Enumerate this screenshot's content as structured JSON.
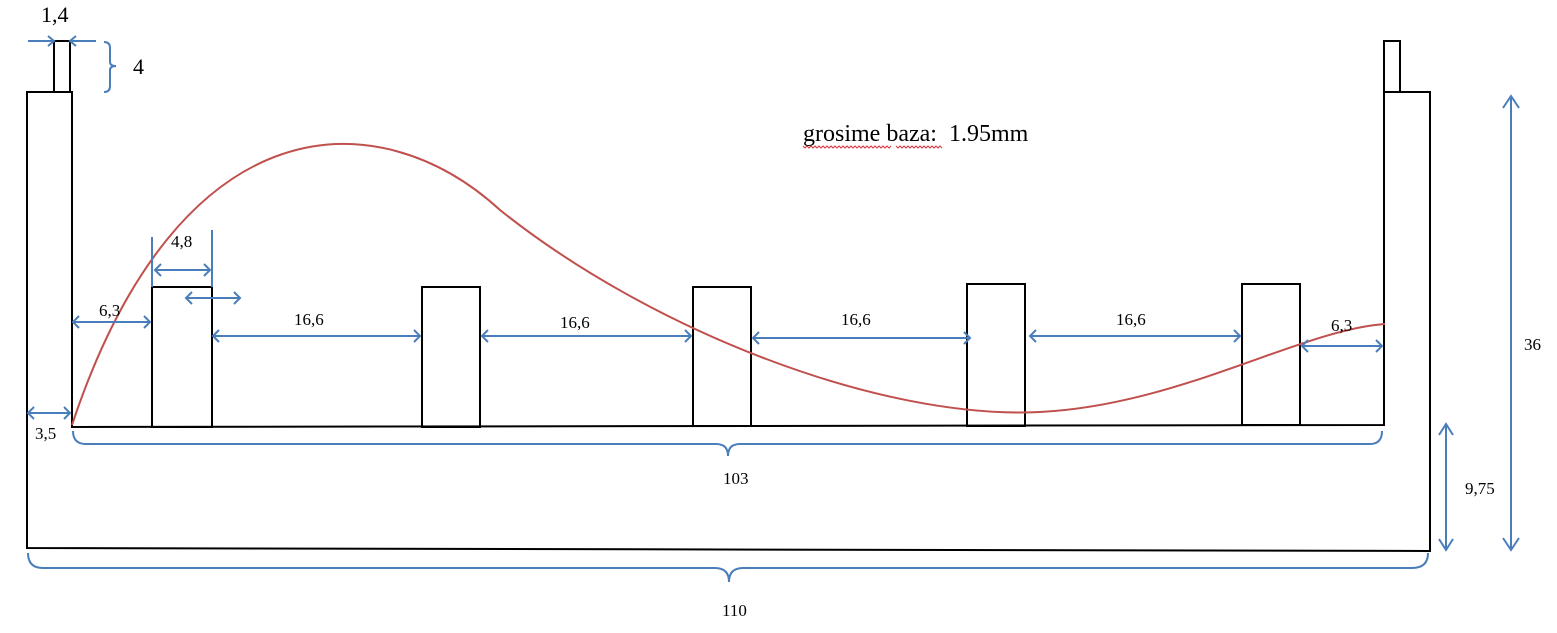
{
  "colors": {
    "outline": "#000000",
    "dimension": "#4a7ebb",
    "curve": "#c0504d",
    "spellcheck": "#d9363e"
  },
  "note": {
    "word1": "grosime",
    "word2": "baza",
    "suffix": ":",
    "value": "1.95mm"
  },
  "dims": {
    "tab_width": "1,4",
    "tab_height": "4",
    "wall_thickness": "3,5",
    "rib_width": "4,8",
    "edge_gap_left": "6,3",
    "gap_1": "16,6",
    "gap_2": "16,6",
    "gap_3": "16,6",
    "gap_4": "16,6",
    "edge_gap_right": "6,3",
    "inner_length": "103",
    "total_length": "110",
    "total_height": "36",
    "base_height": "9,75"
  }
}
